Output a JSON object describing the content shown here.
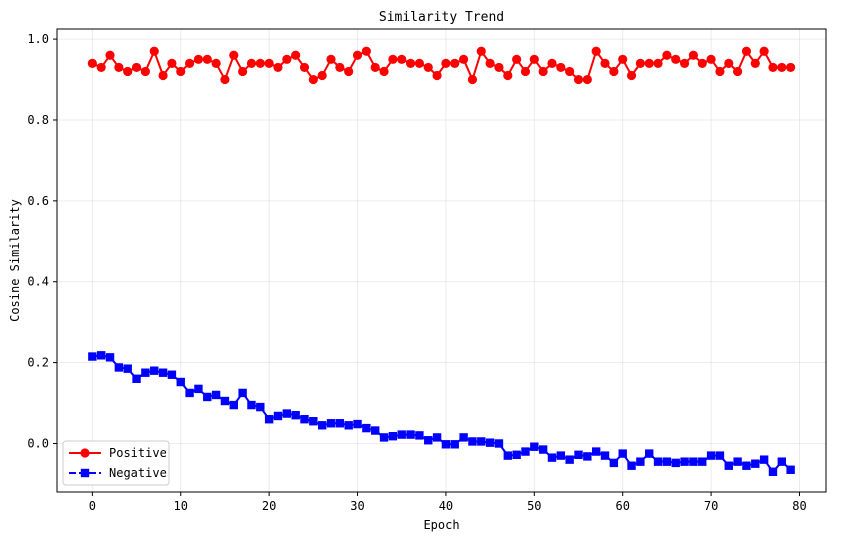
{
  "chart_data": {
    "type": "line",
    "title": "Similarity Trend",
    "xlabel": "Epoch",
    "ylabel": "Cosine Similarity",
    "xlim": [
      -4,
      83
    ],
    "ylim": [
      -0.12,
      1.025
    ],
    "xticks": [
      0,
      10,
      20,
      30,
      40,
      50,
      60,
      70,
      80
    ],
    "yticks": [
      0.0,
      0.2,
      0.4,
      0.6,
      0.8,
      1.0
    ],
    "xtick_labels": [
      "0",
      "10",
      "20",
      "30",
      "40",
      "50",
      "60",
      "70",
      "80"
    ],
    "ytick_labels": [
      "0.0",
      "0.2",
      "0.4",
      "0.6",
      "0.8",
      "1.0"
    ],
    "grid": true,
    "legend_position": "lower-left",
    "x": [
      0,
      1,
      2,
      3,
      4,
      5,
      6,
      7,
      8,
      9,
      10,
      11,
      12,
      13,
      14,
      15,
      16,
      17,
      18,
      19,
      20,
      21,
      22,
      23,
      24,
      25,
      26,
      27,
      28,
      29,
      30,
      31,
      32,
      33,
      34,
      35,
      36,
      37,
      38,
      39,
      40,
      41,
      42,
      43,
      44,
      45,
      46,
      47,
      48,
      49,
      50,
      51,
      52,
      53,
      54,
      55,
      56,
      57,
      58,
      59,
      60,
      61,
      62,
      63,
      64,
      65,
      66,
      67,
      68,
      69,
      70,
      71,
      72,
      73,
      74,
      75,
      76,
      77,
      78,
      79
    ],
    "series": [
      {
        "name": "Positive",
        "color": "#ff0000",
        "marker": "circle",
        "values": [
          0.94,
          0.93,
          0.96,
          0.93,
          0.92,
          0.93,
          0.92,
          0.97,
          0.91,
          0.94,
          0.92,
          0.94,
          0.95,
          0.95,
          0.94,
          0.9,
          0.96,
          0.92,
          0.94,
          0.94,
          0.94,
          0.93,
          0.95,
          0.96,
          0.93,
          0.9,
          0.91,
          0.95,
          0.93,
          0.92,
          0.96,
          0.97,
          0.93,
          0.92,
          0.95,
          0.95,
          0.94,
          0.94,
          0.93,
          0.91,
          0.94,
          0.94,
          0.95,
          0.9,
          0.97,
          0.94,
          0.93,
          0.91,
          0.95,
          0.92,
          0.95,
          0.92,
          0.94,
          0.93,
          0.92,
          0.9,
          0.9,
          0.97,
          0.94,
          0.92,
          0.95,
          0.91,
          0.94,
          0.94,
          0.94,
          0.96,
          0.95,
          0.94,
          0.96,
          0.94,
          0.95,
          0.92,
          0.94,
          0.92,
          0.97,
          0.94,
          0.97,
          0.93,
          0.93,
          0.93
        ]
      },
      {
        "name": "Negative",
        "color": "#0000ff",
        "marker": "square",
        "values": [
          0.215,
          0.218,
          0.213,
          0.188,
          0.185,
          0.16,
          0.175,
          0.18,
          0.175,
          0.17,
          0.152,
          0.125,
          0.135,
          0.115,
          0.12,
          0.105,
          0.095,
          0.125,
          0.095,
          0.09,
          0.06,
          0.068,
          0.074,
          0.07,
          0.06,
          0.055,
          0.045,
          0.05,
          0.05,
          0.045,
          0.048,
          0.038,
          0.032,
          0.015,
          0.018,
          0.022,
          0.022,
          0.02,
          0.008,
          0.015,
          -0.002,
          -0.002,
          0.015,
          0.005,
          0.005,
          0.002,
          0.0,
          -0.03,
          -0.028,
          -0.02,
          -0.008,
          -0.015,
          -0.035,
          -0.03,
          -0.04,
          -0.028,
          -0.032,
          -0.02,
          -0.03,
          -0.048,
          -0.025,
          -0.055,
          -0.045,
          -0.025,
          -0.045,
          -0.045,
          -0.048,
          -0.045,
          -0.045,
          -0.045,
          -0.03,
          -0.03,
          -0.055,
          -0.045,
          -0.055,
          -0.05,
          -0.04,
          -0.07,
          -0.045,
          -0.065
        ]
      }
    ]
  }
}
